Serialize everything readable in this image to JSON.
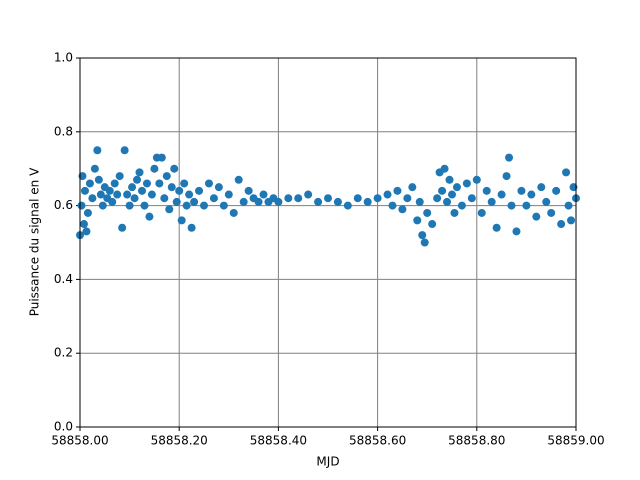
{
  "chart_data": {
    "type": "scatter",
    "x_label": "MJD",
    "y_label": "Puissance du signal en V",
    "color": "#1f77b4",
    "grid": true,
    "xlim": [
      58858,
      58859
    ],
    "ylim": [
      0,
      1
    ],
    "xticks": [
      {
        "value": 58858,
        "label": "58858.00"
      },
      {
        "value": 58858.2,
        "label": "58858.20"
      },
      {
        "value": 58858.4,
        "label": "58858.40"
      },
      {
        "value": 58858.6,
        "label": "58858.60"
      },
      {
        "value": 58858.8,
        "label": "58858.80"
      },
      {
        "value": 58859,
        "label": "58859.00"
      }
    ],
    "yticks": [
      {
        "value": 0,
        "label": "0.0"
      },
      0.2,
      0.4,
      0.6,
      0.8,
      {
        "value": 1,
        "label": "1.0"
      }
    ],
    "x": [
      58858.0,
      58858.003,
      58858.005,
      58858.008,
      58858.01,
      58858.013,
      58858.016,
      58858.02,
      58858.025,
      58858.03,
      58858.035,
      58858.038,
      58858.042,
      58858.046,
      58858.05,
      58858.055,
      58858.06,
      58858.065,
      58858.07,
      58858.075,
      58858.08,
      58858.085,
      58858.09,
      58858.095,
      58858.1,
      58858.105,
      58858.11,
      58858.115,
      58858.12,
      58858.125,
      58858.13,
      58858.135,
      58858.14,
      58858.145,
      58858.15,
      58858.155,
      58858.16,
      58858.165,
      58858.17,
      58858.175,
      58858.18,
      58858.185,
      58858.19,
      58858.195,
      58858.2,
      58858.205,
      58858.21,
      58858.215,
      58858.22,
      58858.225,
      58858.23,
      58858.24,
      58858.25,
      58858.26,
      58858.27,
      58858.28,
      58858.29,
      58858.3,
      58858.31,
      58858.32,
      58858.33,
      58858.34,
      58858.35,
      58858.36,
      58858.37,
      58858.38,
      58858.39,
      58858.4,
      58858.42,
      58858.44,
      58858.46,
      58858.48,
      58858.5,
      58858.52,
      58858.54,
      58858.56,
      58858.58,
      58858.6,
      58858.62,
      58858.63,
      58858.64,
      58858.65,
      58858.66,
      58858.67,
      58858.68,
      58858.685,
      58858.69,
      58858.695,
      58858.7,
      58858.71,
      58858.72,
      58858.725,
      58858.73,
      58858.735,
      58858.74,
      58858.745,
      58858.75,
      58858.755,
      58858.76,
      58858.77,
      58858.78,
      58858.79,
      58858.8,
      58858.81,
      58858.82,
      58858.83,
      58858.84,
      58858.85,
      58858.86,
      58858.865,
      58858.87,
      58858.88,
      58858.89,
      58858.9,
      58858.91,
      58858.92,
      58858.93,
      58858.94,
      58858.95,
      58858.96,
      58858.97,
      58858.98,
      58858.985,
      58858.99,
      58858.995,
      58859.0
    ],
    "values": [
      0.52,
      0.6,
      0.68,
      0.55,
      0.64,
      0.53,
      0.58,
      0.66,
      0.62,
      0.7,
      0.75,
      0.67,
      0.63,
      0.6,
      0.65,
      0.62,
      0.64,
      0.61,
      0.66,
      0.63,
      0.68,
      0.54,
      0.75,
      0.63,
      0.6,
      0.65,
      0.62,
      0.67,
      0.69,
      0.64,
      0.6,
      0.66,
      0.57,
      0.63,
      0.7,
      0.73,
      0.66,
      0.73,
      0.62,
      0.68,
      0.59,
      0.65,
      0.7,
      0.61,
      0.64,
      0.56,
      0.66,
      0.6,
      0.63,
      0.54,
      0.61,
      0.64,
      0.6,
      0.66,
      0.62,
      0.65,
      0.6,
      0.63,
      0.58,
      0.67,
      0.61,
      0.64,
      0.62,
      0.61,
      0.63,
      0.61,
      0.62,
      0.61,
      0.62,
      0.62,
      0.63,
      0.61,
      0.62,
      0.61,
      0.6,
      0.62,
      0.61,
      0.62,
      0.63,
      0.6,
      0.64,
      0.59,
      0.62,
      0.65,
      0.56,
      0.61,
      0.52,
      0.5,
      0.58,
      0.55,
      0.62,
      0.69,
      0.64,
      0.7,
      0.61,
      0.67,
      0.63,
      0.58,
      0.65,
      0.6,
      0.66,
      0.62,
      0.67,
      0.58,
      0.64,
      0.61,
      0.54,
      0.63,
      0.68,
      0.73,
      0.6,
      0.53,
      0.64,
      0.6,
      0.63,
      0.57,
      0.65,
      0.61,
      0.58,
      0.64,
      0.55,
      0.69,
      0.6,
      0.56,
      0.65,
      0.62
    ]
  }
}
